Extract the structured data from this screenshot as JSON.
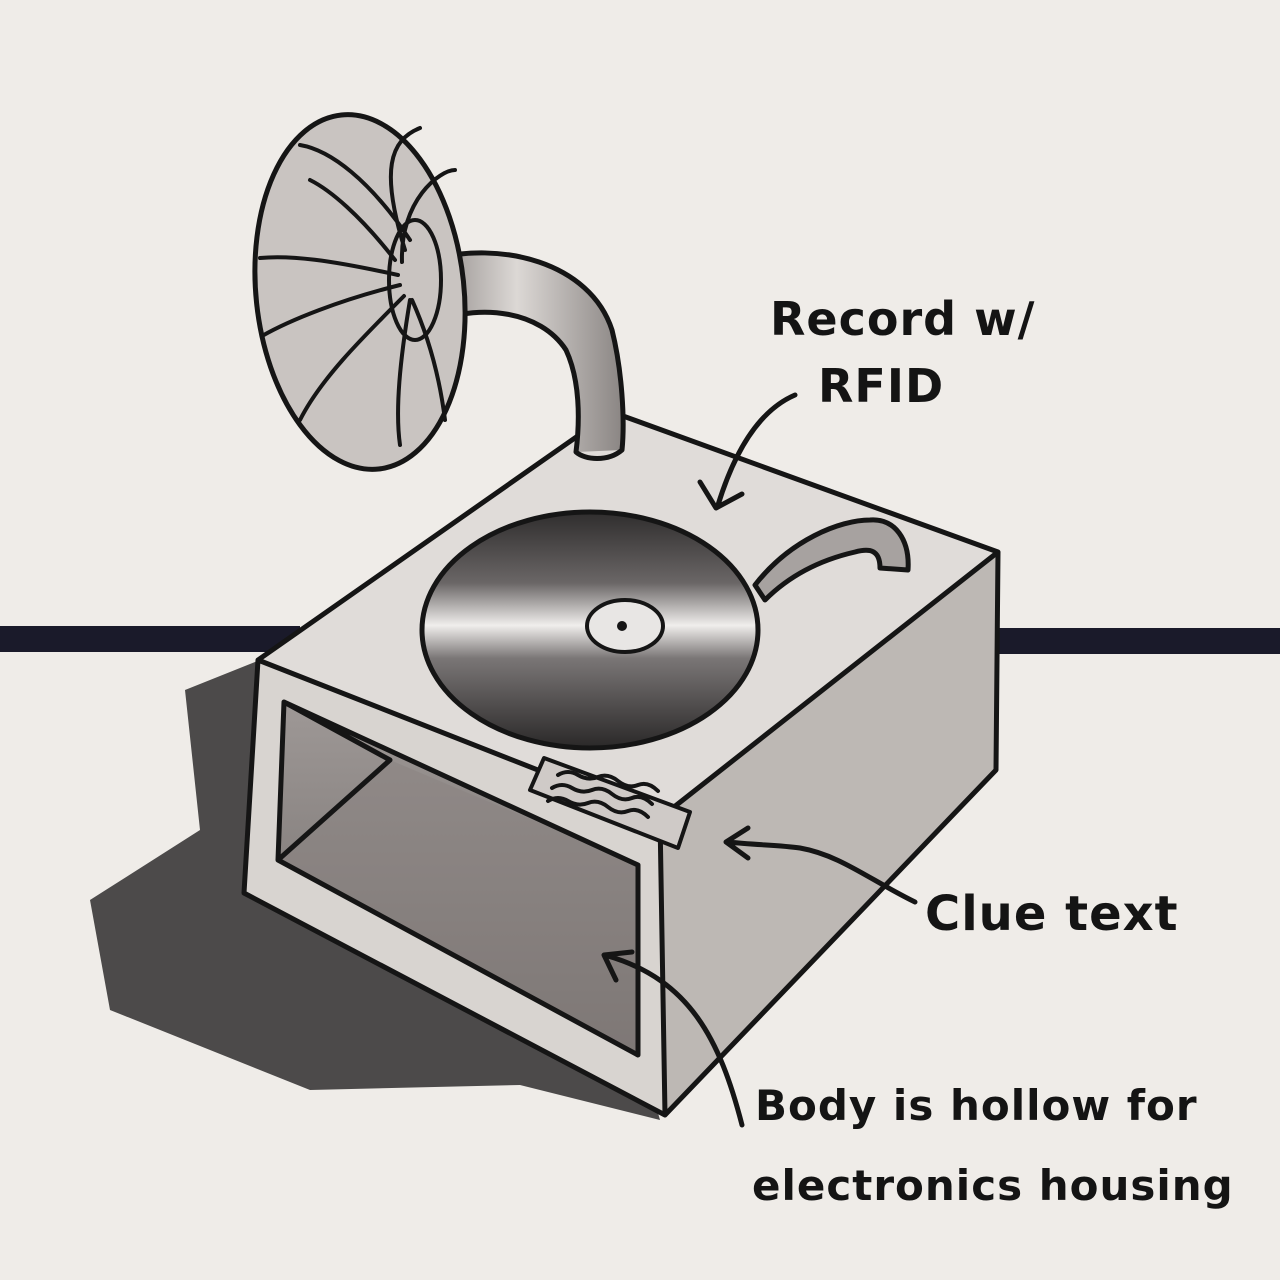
{
  "annotations": {
    "record_line1": "Record w/",
    "record_line2": "RFID",
    "clue": "Clue text",
    "body_line1": "Body is hollow for",
    "body_line2": "electronics housing"
  },
  "colors": {
    "paper": "#efece8",
    "ink": "#151515",
    "body_light": "#d8d4d0",
    "body_mid": "#bdb8b4",
    "shadow": "#3a3838",
    "record_dark": "#2e2c2c"
  }
}
